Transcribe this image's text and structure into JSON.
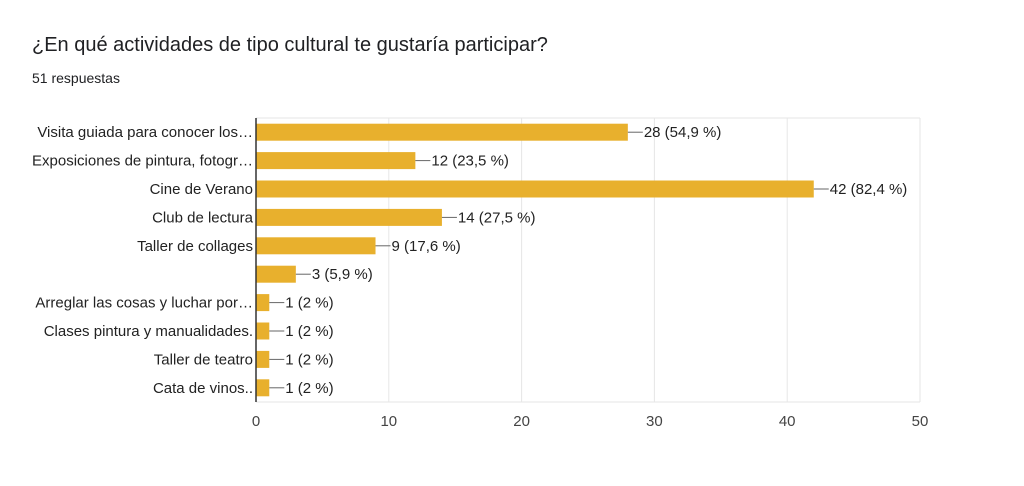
{
  "title": "¿En qué actividades de tipo cultural te gustaría participar?",
  "subtitle": "51 respuestas",
  "chart_data": {
    "type": "bar",
    "orientation": "horizontal",
    "title": "¿En qué actividades de tipo cultural te gustaría participar?",
    "subtitle": "51 respuestas",
    "categories": [
      "Visita guiada para conocer los…",
      "Exposiciones de pintura, fotogr…",
      "Cine de Verano",
      "Club de lectura",
      "Taller de collages",
      "",
      "Arreglar las cosas y luchar por…",
      "Clases pintura y manualidades.",
      "Taller de teatro",
      "Cata de vinos.."
    ],
    "values": [
      28,
      12,
      42,
      14,
      9,
      3,
      1,
      1,
      1,
      1
    ],
    "data_labels": [
      "28 (54,9 %)",
      "12 (23,5 %)",
      "42 (82,4 %)",
      "14 (27,5 %)",
      "9 (17,6 %)",
      "3 (5,9 %)",
      "1 (2 %)",
      "1 (2 %)",
      "1 (2 %)",
      "1 (2 %)"
    ],
    "xlim": [
      0,
      50
    ],
    "xticks": [
      0,
      10,
      20,
      30,
      40,
      50
    ],
    "xlabel": "",
    "ylabel": "",
    "grid": true,
    "legend": "none",
    "colors": {
      "bar": "#e8b02d",
      "grid": "#e6e6e6",
      "axis": "#333333",
      "connector": "#666666"
    }
  }
}
